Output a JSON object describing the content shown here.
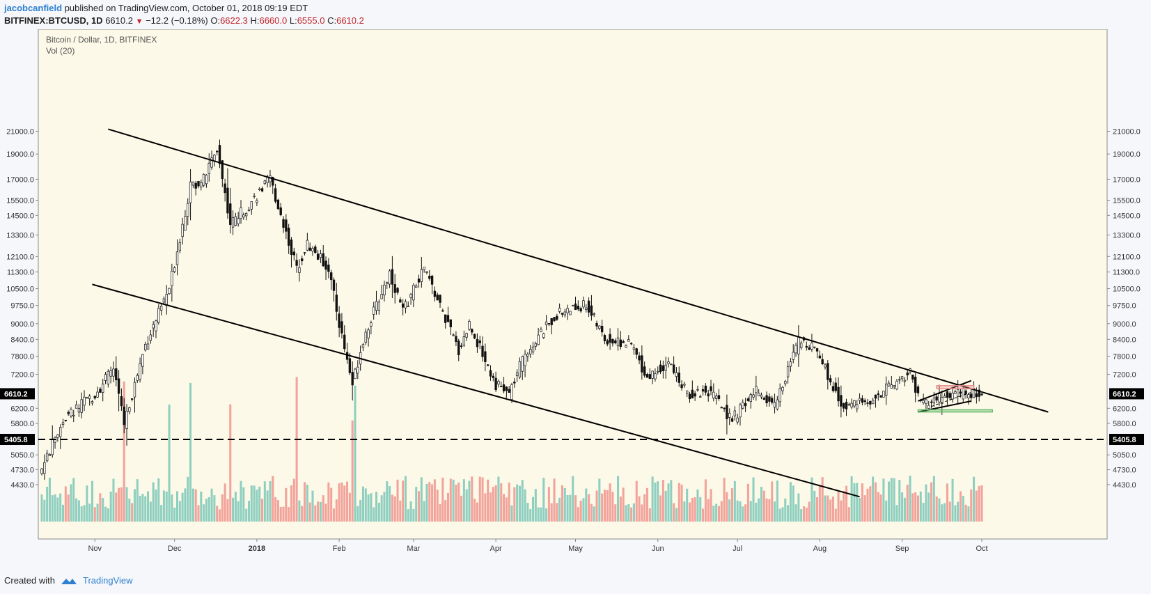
{
  "header": {
    "author": "jacobcanfield",
    "published_text": "published on TradingView.com, October 01, 2018 09:19 EDT",
    "symbol": "BITFINEX:BTCUSD, 1D",
    "last": "6610.2",
    "change_arrow": "▼",
    "change": "−12.2 (−0.18%)",
    "o_label": "O:",
    "o_value": "6622.3",
    "h_label": "H:",
    "h_value": "6660.0",
    "l_label": "L:",
    "l_value": "6555.0",
    "c_label": "C:",
    "c_value": "6610.2"
  },
  "legend": {
    "title": "Bitcoin / Dollar, 1D, BITFINEX",
    "vol": "Vol (20)"
  },
  "footer": {
    "created": "Created with",
    "brand": "TradingView"
  },
  "colors": {
    "background": "#fcf9e8",
    "up_volume": "#8fcfc0",
    "down_volume": "#f2a39b",
    "candle": "#111111"
  },
  "chart_data": {
    "type": "candlestick",
    "title": "Bitcoin / Dollar, 1D, BITFINEX",
    "y_ticks": [
      "21000.0",
      "19000.0",
      "17000.0",
      "15500.0",
      "14500.0",
      "13300.0",
      "12100.0",
      "11300.0",
      "10500.0",
      "9750.0",
      "9000.0",
      "8400.0",
      "7800.0",
      "7200.0",
      "6200.0",
      "5800.0",
      "5050.0",
      "4730.0",
      "4430.0"
    ],
    "x_ticks": [
      "Nov",
      "Dec",
      "2018",
      "Feb",
      "Mar",
      "Apr",
      "May",
      "Jun",
      "Jul",
      "Aug",
      "Sep",
      "Oct"
    ],
    "price_label": "6610.2",
    "support_label": "5405.8",
    "start_date": "2017-10-12",
    "end_date": "2018-10-01",
    "anchors": [
      [
        "2017-10-12",
        4750
      ],
      [
        "2017-10-20",
        5900
      ],
      [
        "2017-11-01",
        6600
      ],
      [
        "2017-11-08",
        7400
      ],
      [
        "2017-11-12",
        5800
      ],
      [
        "2017-11-20",
        8200
      ],
      [
        "2017-11-29",
        10500
      ],
      [
        "2017-12-07",
        16500
      ],
      [
        "2017-12-12",
        17000
      ],
      [
        "2017-12-17",
        19500
      ],
      [
        "2017-12-22",
        14000
      ],
      [
        "2017-12-28",
        15000
      ],
      [
        "2018-01-06",
        17000
      ],
      [
        "2018-01-16",
        11500
      ],
      [
        "2018-01-20",
        12800
      ],
      [
        "2018-01-28",
        11500
      ],
      [
        "2018-02-01",
        9000
      ],
      [
        "2018-02-06",
        6900
      ],
      [
        "2018-02-10",
        8400
      ],
      [
        "2018-02-20",
        11300
      ],
      [
        "2018-02-25",
        9500
      ],
      [
        "2018-03-05",
        11500
      ],
      [
        "2018-03-18",
        8000
      ],
      [
        "2018-03-22",
        9000
      ],
      [
        "2018-04-01",
        6900
      ],
      [
        "2018-04-06",
        6600
      ],
      [
        "2018-04-12",
        7900
      ],
      [
        "2018-04-24",
        9400
      ],
      [
        "2018-05-05",
        9800
      ],
      [
        "2018-05-12",
        8400
      ],
      [
        "2018-05-22",
        8200
      ],
      [
        "2018-05-28",
        7100
      ],
      [
        "2018-06-05",
        7600
      ],
      [
        "2018-06-12",
        6600
      ],
      [
        "2018-06-20",
        6700
      ],
      [
        "2018-06-29",
        5900
      ],
      [
        "2018-07-08",
        6700
      ],
      [
        "2018-07-15",
        6300
      ],
      [
        "2018-07-24",
        8300
      ],
      [
        "2018-07-30",
        8200
      ],
      [
        "2018-08-09",
        6300
      ],
      [
        "2018-08-15",
        6300
      ],
      [
        "2018-08-22",
        6500
      ],
      [
        "2018-09-04",
        7300
      ],
      [
        "2018-09-08",
        6300
      ],
      [
        "2018-09-16",
        6500
      ],
      [
        "2018-09-20",
        6600
      ],
      [
        "2018-10-01",
        6610
      ]
    ],
    "volume_spikes": [
      "2017-11-12",
      "2017-11-29",
      "2017-12-07",
      "2017-12-22",
      "2018-01-16",
      "2018-02-06",
      "2018-02-07"
    ],
    "trendlines": [
      {
        "name": "upper-channel",
        "from": [
          "2017-11-06",
          21200
        ],
        "to": [
          "2018-10-26",
          6100
        ]
      },
      {
        "name": "lower-channel",
        "from": [
          "2017-10-31",
          10700
        ],
        "to": [
          "2018-08-16",
          4200
        ]
      },
      {
        "name": "wedge-top",
        "from": [
          "2018-09-07",
          6400
        ],
        "to": [
          "2018-09-27",
          7000
        ]
      },
      {
        "name": "wedge-bottom",
        "from": [
          "2018-09-07",
          6100
        ],
        "to": [
          "2018-09-27",
          6400
        ]
      }
    ],
    "horizontal_line": 5405.8,
    "zones": [
      {
        "name": "resistance-zone",
        "from": "2018-09-14",
        "to": "2018-09-28",
        "low": 6760,
        "high": 6850,
        "color": "#e88c8c"
      },
      {
        "name": "support-zone",
        "from": "2018-09-07",
        "to": "2018-10-05",
        "low": 6100,
        "high": 6160,
        "color": "#66bb6a"
      }
    ]
  }
}
